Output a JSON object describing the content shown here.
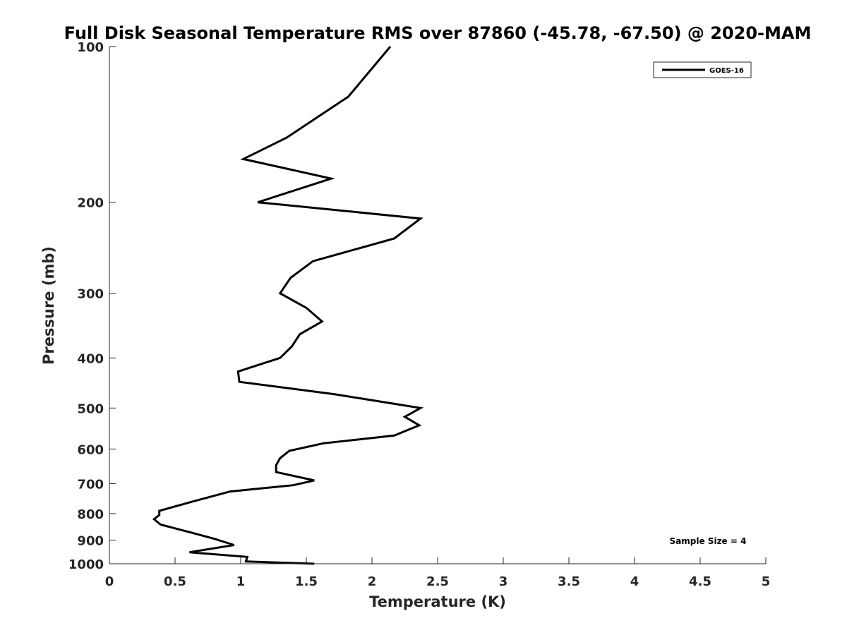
{
  "chart_data": {
    "type": "line",
    "title": "Full Disk Seasonal Temperature RMS over 87860 (-45.78, -67.50) @ 2020-MAM",
    "xlabel": "Temperature (K)",
    "ylabel": "Pressure (mb)",
    "xlim": [
      0,
      5
    ],
    "ylim": [
      100,
      1000
    ],
    "y_scale": "log",
    "y_reversed": true,
    "x_ticks": [
      0,
      0.5,
      1,
      1.5,
      2,
      2.5,
      3,
      3.5,
      4,
      4.5,
      5
    ],
    "x_tick_labels": [
      "0",
      "0.5",
      "1",
      "1.5",
      "2",
      "2.5",
      "3",
      "3.5",
      "4",
      "4.5",
      "5"
    ],
    "y_ticks": [
      100,
      200,
      300,
      400,
      500,
      600,
      700,
      800,
      900,
      1000
    ],
    "y_tick_labels": [
      "100",
      "200",
      "300",
      "400",
      "500",
      "600",
      "700",
      "800",
      "900",
      "1000"
    ],
    "grid": false,
    "legend_position": "top-right",
    "annotation": "Sample Size = 4",
    "series": [
      {
        "name": "GOES-16",
        "color": "#000000",
        "x": [
          2.14,
          1.82,
          1.35,
          1.02,
          1.69,
          1.13,
          2.37,
          2.17,
          1.55,
          1.38,
          1.3,
          1.5,
          1.62,
          1.45,
          1.39,
          1.3,
          0.98,
          0.99,
          1.71,
          2.37,
          2.25,
          2.36,
          2.17,
          1.63,
          1.37,
          1.3,
          1.27,
          1.27,
          1.56,
          1.4,
          0.92,
          0.62,
          0.38,
          0.38,
          0.34,
          0.39,
          0.62,
          0.8,
          0.95,
          0.61,
          1.05,
          1.04,
          1.56
        ],
        "y": [
          100,
          125,
          150,
          165,
          180,
          200,
          215,
          235,
          260,
          280,
          300,
          320,
          340,
          360,
          380,
          400,
          425,
          445,
          470,
          500,
          520,
          540,
          565,
          585,
          605,
          625,
          645,
          665,
          690,
          705,
          725,
          760,
          790,
          805,
          820,
          840,
          870,
          895,
          920,
          950,
          970,
          990,
          1000
        ]
      }
    ]
  }
}
